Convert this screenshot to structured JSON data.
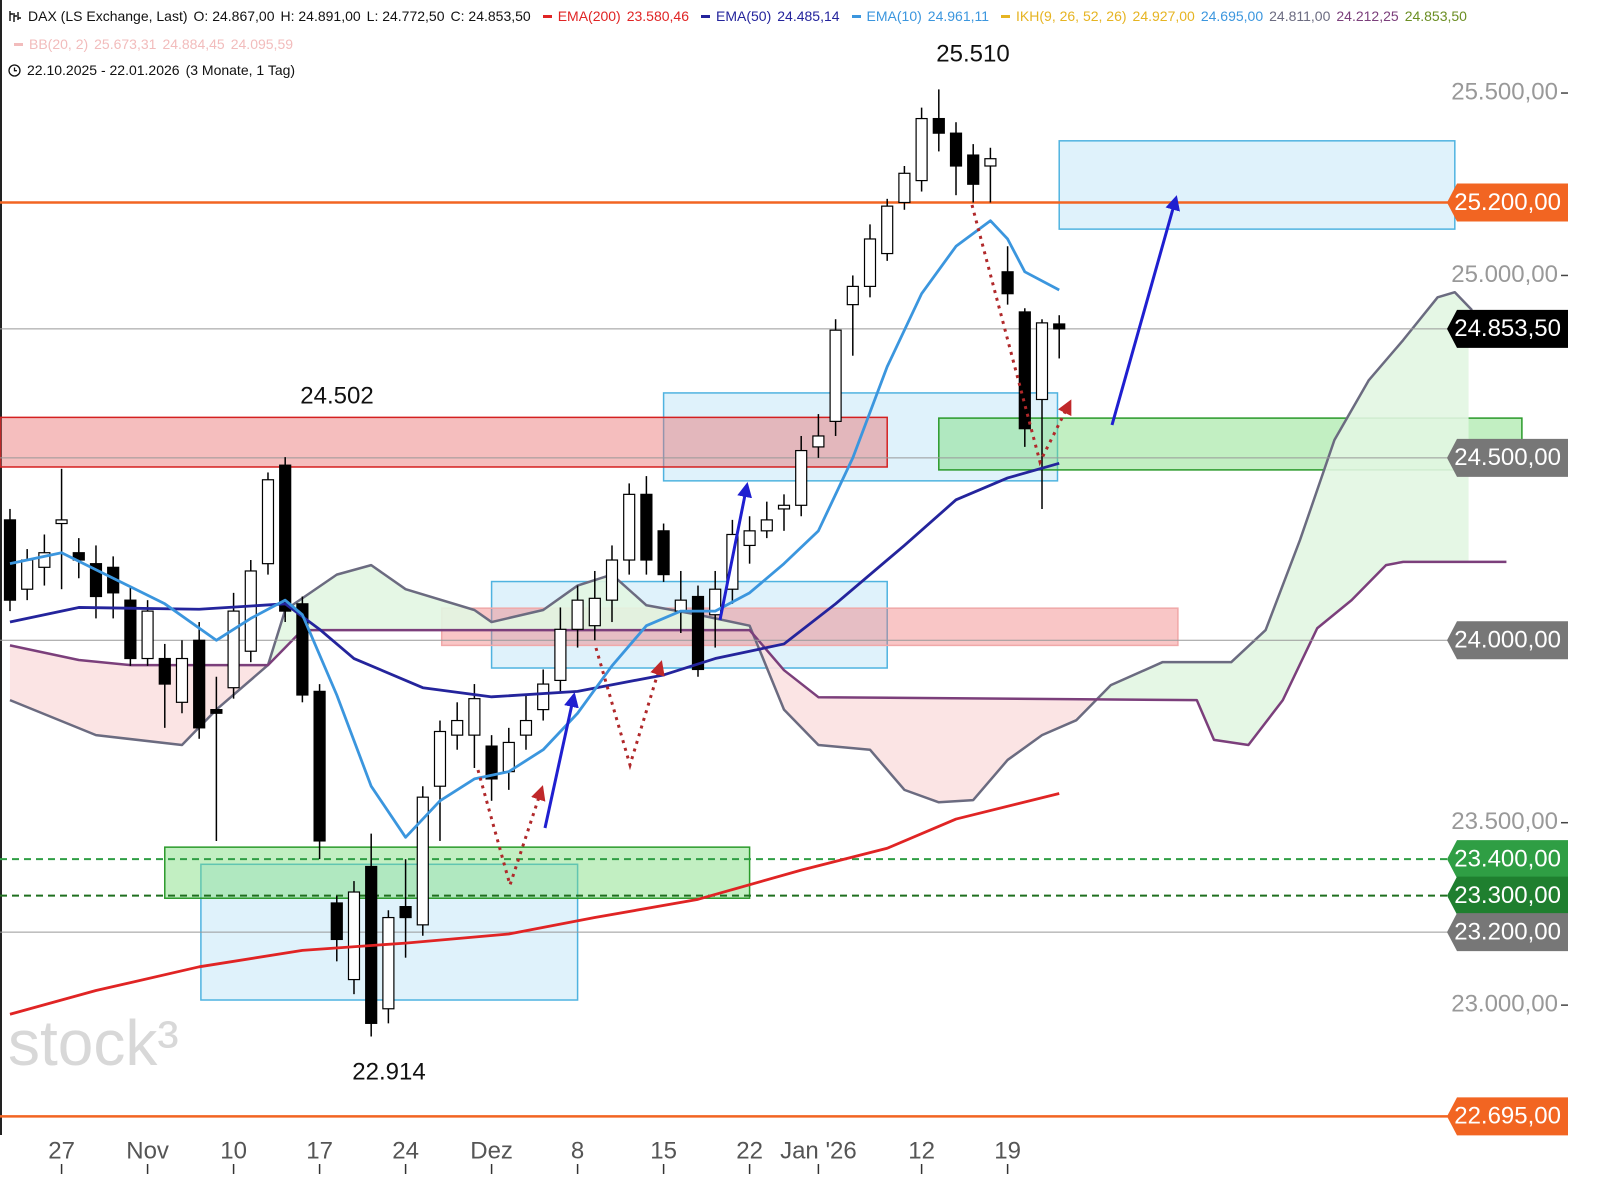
{
  "chart_data": {
    "type": "candlestick",
    "title": "DAX (LS Exchange, Last)",
    "ohlc_labels": [
      "O: 24.867,00",
      "H: 24.891,00",
      "L: 24.772,50",
      "C: 24.853,50"
    ],
    "date_range": "22.10.2025 - 22.01.2026",
    "period": "(3 Monate, 1 Tag)",
    "watermark": "stock³",
    "categories": [
      null,
      null,
      null,
      "27",
      null,
      null,
      null,
      null,
      "Nov",
      null,
      null,
      null,
      null,
      "10",
      null,
      null,
      null,
      null,
      "17",
      null,
      null,
      null,
      null,
      "24",
      null,
      null,
      null,
      null,
      "Dez",
      null,
      null,
      null,
      null,
      "8",
      null,
      null,
      null,
      null,
      "15",
      null,
      null,
      null,
      null,
      "22",
      null,
      null,
      null,
      "Jan '26",
      null,
      null,
      null,
      null,
      null,
      "12",
      null,
      null,
      null,
      null,
      "19",
      null,
      null,
      null
    ],
    "xlim": [
      -0.58,
      90.58
    ],
    "ylim": [
      22644,
      25755
    ],
    "yticks": [
      {
        "value": 23000,
        "label": "23.000,00"
      },
      {
        "value": 23500,
        "label": "23.500,00"
      },
      {
        "value": 25000,
        "label": "25.000,00"
      },
      {
        "value": 25500,
        "label": "25.500,00"
      }
    ],
    "up_color": "#ffffff",
    "down_color": "#000000",
    "open": [
      24330,
      24140,
      24200,
      24320,
      24240,
      24210,
      24200,
      24110,
      23950,
      23950,
      23830,
      24000,
      23810,
      23870,
      23970,
      24210,
      24480,
      24100,
      23860,
      23280,
      23070,
      23380,
      22990,
      23270,
      23220,
      23600,
      23740,
      23740,
      23710,
      23640,
      23740,
      23810,
      23890,
      24030,
      24040,
      24110,
      24220,
      24400,
      24300,
      24080,
      24120,
      24070,
      24140,
      24260,
      24300,
      24360,
      24370,
      24530,
      24600,
      24920,
      24970,
      25060,
      25200,
      25260,
      25430,
      25390,
      25330,
      25300,
      25010,
      24900,
      24660,
      24867
    ],
    "high": [
      24360,
      24250,
      24290,
      24470,
      24280,
      24260,
      24230,
      24150,
      24110,
      23990,
      24000,
      24050,
      23900,
      24130,
      24220,
      24460,
      24502,
      24120,
      23880,
      23300,
      23340,
      23470,
      23260,
      23400,
      23600,
      23780,
      23830,
      23880,
      23740,
      23760,
      23850,
      23920,
      24090,
      24150,
      24190,
      24260,
      24430,
      24450,
      24320,
      24190,
      24150,
      24190,
      24330,
      24340,
      24380,
      24400,
      24560,
      24620,
      24880,
      25000,
      25140,
      25210,
      25300,
      25460,
      25510,
      25420,
      25360,
      25350,
      25080,
      24910,
      24880,
      24891
    ],
    "low": [
      24080,
      24110,
      24150,
      24140,
      24170,
      24060,
      24060,
      23930,
      23930,
      23760,
      23800,
      23730,
      23450,
      23840,
      23940,
      24180,
      24050,
      23830,
      23400,
      23120,
      23030,
      22914,
      22950,
      23130,
      23190,
      23450,
      23700,
      23650,
      23560,
      23590,
      23700,
      23780,
      23860,
      23980,
      24000,
      24050,
      24180,
      24180,
      24160,
      24020,
      23900,
      23980,
      24100,
      24210,
      24280,
      24300,
      24340,
      24500,
      24560,
      24780,
      24940,
      25040,
      25180,
      25230,
      25340,
      25220,
      25200,
      25200,
      24920,
      24530,
      24360,
      24772.5
    ],
    "close": [
      24110,
      24220,
      24240,
      24330,
      24220,
      24120,
      24130,
      23950,
      24080,
      23880,
      23950,
      23760,
      23800,
      24080,
      24190,
      24440,
      24080,
      23850,
      23450,
      23180,
      23310,
      22950,
      23240,
      23240,
      23570,
      23750,
      23780,
      23840,
      23620,
      23720,
      23780,
      23880,
      24030,
      24110,
      24115,
      24220,
      24400,
      24220,
      24180,
      24110,
      23920,
      24140,
      24290,
      24300,
      24330,
      24370,
      24520,
      24560,
      24850,
      24970,
      25100,
      25190,
      25280,
      25430,
      25390,
      25300,
      25250,
      25320,
      24950,
      24580,
      24870,
      24853.5
    ],
    "series": [
      {
        "name": "EMA(200)",
        "value_label": "23.580,46",
        "color": "#e02424",
        "x": [
          0,
          5,
          11,
          17,
          23,
          29,
          34,
          40,
          46,
          51,
          55,
          61
        ],
        "values": [
          22975,
          23040,
          23105,
          23150,
          23170,
          23195,
          23240,
          23290,
          23370,
          23430,
          23510,
          23580
        ]
      },
      {
        "name": "EMA(50)",
        "value_label": "24.485,14",
        "color": "#24249c",
        "x": [
          0,
          4,
          11,
          16,
          18,
          20,
          24,
          28,
          33,
          38,
          41,
          45,
          48,
          52,
          55,
          58,
          61
        ],
        "values": [
          24050,
          24090,
          24085,
          24100,
          24030,
          23950,
          23870,
          23845,
          23860,
          23905,
          23950,
          23990,
          24100,
          24260,
          24385,
          24445,
          24485
        ]
      },
      {
        "name": "EMA(10)",
        "value_label": "24.961,11",
        "color": "#3b96de",
        "x": [
          0,
          3,
          6,
          9,
          12,
          14,
          16,
          17,
          19,
          21,
          23,
          25,
          27,
          29,
          31,
          33,
          35,
          37,
          39,
          41,
          43,
          45,
          47,
          49,
          51,
          53,
          55,
          57,
          58,
          59,
          61
        ],
        "values": [
          24210,
          24240,
          24170,
          24100,
          24000,
          24060,
          24110,
          24070,
          23850,
          23600,
          23460,
          23560,
          23620,
          23640,
          23700,
          23800,
          23930,
          24040,
          24080,
          24080,
          24130,
          24210,
          24300,
          24500,
          24750,
          24950,
          25080,
          25150,
          25100,
          25010,
          24960
        ]
      }
    ],
    "ichimoku": {
      "name": "IKH(9, 26, 52, 26)",
      "color": "#e6b422",
      "value_labels": [
        "24.927,00",
        "24.695,00",
        "24.811,00",
        "24.212,25",
        "24.853,50"
      ],
      "value_colors": [
        "#e6b422",
        "#3b96de",
        "#6b6b80",
        "#7b3f7b",
        "#6b8e23"
      ],
      "bull_fill": "#e2f6e2",
      "bear_fill": "#fbe1e1",
      "span_a": {
        "color": "#6b6b80",
        "x": [
          0,
          5,
          10,
          12,
          15,
          16,
          19,
          21,
          23,
          27,
          28,
          31,
          33,
          35,
          37,
          40,
          43,
          45,
          47,
          50,
          52,
          54,
          56,
          58,
          60,
          62,
          64,
          67,
          71,
          73,
          75,
          77,
          79,
          81,
          83,
          84,
          85
        ],
        "values": [
          23836,
          23740,
          23713,
          23810,
          23932,
          24083,
          24180,
          24206,
          24140,
          24083,
          24050,
          24083,
          24150,
          24180,
          24096,
          24070,
          24040,
          23810,
          23713,
          23700,
          23590,
          23556,
          23562,
          23672,
          23740,
          23781,
          23877,
          23940,
          23940,
          24028,
          24275,
          24549,
          24713,
          24823,
          24940,
          24954,
          24905
        ]
      },
      "span_b": {
        "color": "#7b3f7b",
        "x": [
          0,
          4,
          7,
          15,
          17,
          43,
          45,
          47,
          69,
          70,
          72,
          74,
          76,
          78,
          80,
          81,
          87
        ],
        "values": [
          23986,
          23946,
          23932,
          23932,
          24028,
          24028,
          23918,
          23844,
          23836,
          23727,
          23713,
          23836,
          24033,
          24110,
          24206,
          24215,
          24215
        ]
      }
    },
    "bands": {
      "name": "BB(20, 2)",
      "color": "#f2bcbc",
      "value_labels": [
        "25.673,31",
        "24.884,45",
        "24.095,59"
      ]
    },
    "zones": [
      {
        "x": [
          38,
          60.9
        ],
        "y": [
          24437,
          24678
        ],
        "fill": "rgba(170,220,245,0.38)",
        "stroke": "#4fb3e0"
      },
      {
        "x": [
          28,
          51
        ],
        "y": [
          23924,
          24161
        ],
        "fill": "rgba(170,220,245,0.38)",
        "stroke": "#4fb3e0"
      },
      {
        "x": [
          11.1,
          33
        ],
        "y": [
          23014,
          23386
        ],
        "fill": "rgba(170,220,245,0.38)",
        "stroke": "#4fb3e0"
      },
      {
        "x": [
          61,
          84
        ],
        "y": [
          25127,
          25369
        ],
        "fill": "rgba(170,220,245,0.38)",
        "stroke": "#4fb3e0"
      },
      {
        "x": [
          -0.58,
          51
        ],
        "y": [
          24475,
          24611
        ],
        "fill": "rgba(232,110,110,0.45)",
        "stroke": "#d42020"
      },
      {
        "x": [
          25.1,
          67.9
        ],
        "y": [
          23986,
          24088
        ],
        "fill": "rgba(240,120,120,0.42)",
        "stroke": "#f0a8a8"
      },
      {
        "x": [
          9,
          43
        ],
        "y": [
          23293,
          23433
        ],
        "fill": "rgba(120,220,120,0.45)",
        "stroke": "#2a9a2a"
      },
      {
        "x": [
          54,
          87.9
        ],
        "y": [
          24467,
          24609
        ],
        "fill": "rgba(120,220,120,0.45)",
        "stroke": "#2a9a2a"
      }
    ],
    "levels": [
      {
        "value": 25200,
        "label": "25.200,00",
        "color": "#f26522",
        "line_color": "#f26522",
        "style": "thick"
      },
      {
        "value": 24853.5,
        "label": "24.853,50",
        "color": "#000000",
        "line_color": "#999999",
        "style": "thin"
      },
      {
        "value": 24500,
        "label": "24.500,00",
        "color": "#777777",
        "line_color": "#999999",
        "style": "thin"
      },
      {
        "value": 24000,
        "label": "24.000,00",
        "color": "#777777",
        "line_color": "#999999",
        "style": "thin"
      },
      {
        "value": 23400,
        "label": "23.400,00",
        "color": "#2f9e44",
        "line_color": "#2f9e44",
        "style": "dashed"
      },
      {
        "value": 23300,
        "label": "23.300,00",
        "color": "#1f7f2f",
        "line_color": "#1f6f1f",
        "style": "dashed"
      },
      {
        "value": 23200,
        "label": "23.200,00",
        "color": "#777777",
        "line_color": "#999999",
        "style": "thin"
      },
      {
        "value": 22695,
        "label": "22.695,00",
        "color": "#f26522",
        "line_color": "#f26522",
        "style": "thick"
      }
    ],
    "annotations": [
      {
        "text": "25.510"
      },
      {
        "text": "24.502"
      },
      {
        "text": "22.914"
      }
    ]
  }
}
